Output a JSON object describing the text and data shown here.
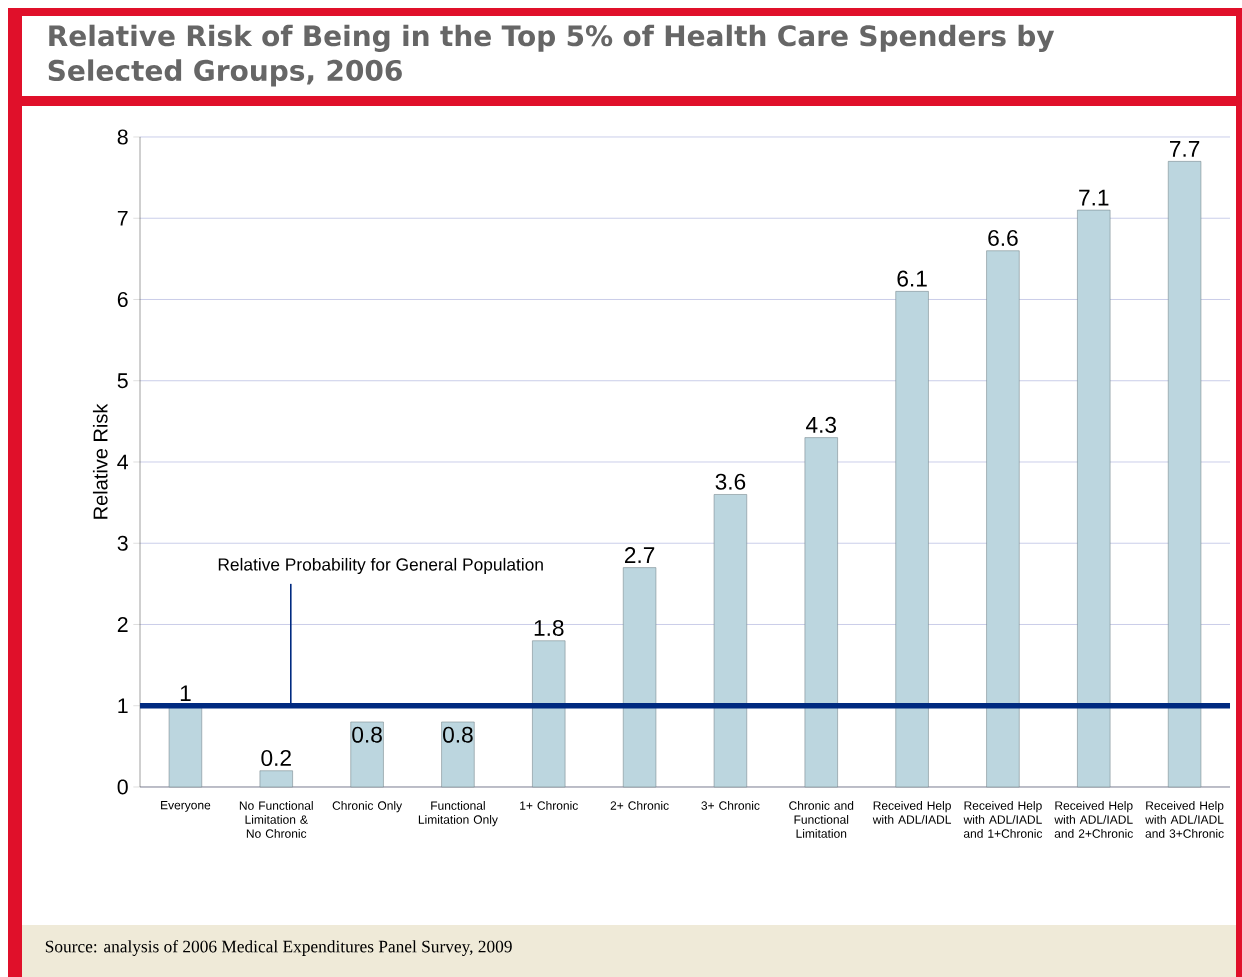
{
  "chart_data": {
    "type": "bar",
    "title": "Relative Risk of Being in the Top 5% of Health Care Spenders by Selected Groups, 2006",
    "ylabel": "Relative Risk",
    "categories": [
      "Everyone",
      "No Functional Limitation & No Chronic",
      "Chronic Only",
      "Functional Limitation Only",
      "1+ Chronic",
      "2+ Chronic",
      "3+ Chronic",
      "Chronic and Functional Limitation",
      "Received Help with ADL/IADL",
      "Received Help with ADL/IADL and 1+Chronic",
      "Received Help with ADL/IADL and 2+Chronic",
      "Received Help with ADL/IADL and 3+Chronic"
    ],
    "values": [
      1,
      0.2,
      0.8,
      0.8,
      1.8,
      2.7,
      3.6,
      4.3,
      6.1,
      6.6,
      7.1,
      7.7
    ],
    "color": "#bcd6df",
    "data_labels": true,
    "ylim": [
      0,
      8
    ],
    "yticks": [
      0,
      1,
      2,
      3,
      4,
      5,
      6,
      7,
      8
    ],
    "grid": "y",
    "ref_lines": [
      {
        "axis": "y",
        "value": 1,
        "label": "Relative Probability for General Population",
        "color": "#002a80"
      }
    ],
    "annotations": [
      "Source: analysis of 2006 Medical Expenditures Panel Survey, 2009"
    ]
  }
}
